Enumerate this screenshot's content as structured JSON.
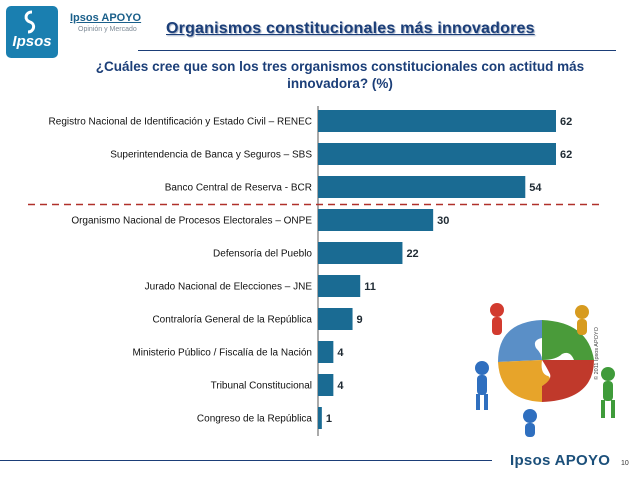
{
  "header": {
    "logo_text": "Ipsos",
    "brand_name": "Ipsos APOYO",
    "brand_tagline": "Opinión y Mercado",
    "title": "Organismos constitucionales más innovadores"
  },
  "question": "¿Cuáles cree que son los tres organismos constitucionales con actitud más innovadora? (%)",
  "chart_data": {
    "type": "bar",
    "orientation": "horizontal",
    "bar_color": "#1a6b93",
    "divider_color": "#b0302a",
    "divider_after_index": 2,
    "grid": false,
    "xlim": [
      0,
      65
    ],
    "categories": [
      "Registro Nacional de Identificación y Estado Civil – RENEC",
      "Superintendencia de Banca y Seguros – SBS",
      "Banco Central de Reserva - BCR",
      "Organismo Nacional de Procesos Electorales – ONPE",
      "Defensoría del Pueblo",
      "Jurado Nacional de Elecciones – JNE",
      "Contraloría General de la República",
      "Ministerio Público / Fiscalía de la Nación",
      "Tribunal Constitucional",
      "Congreso de la República"
    ],
    "values": [
      62,
      62,
      54,
      30,
      22,
      11,
      9,
      4,
      4,
      1
    ]
  },
  "footer": {
    "brand": "Ipsos APOYO",
    "page_number": "10",
    "copyright": "© 2011 Ipsos APOYO"
  }
}
